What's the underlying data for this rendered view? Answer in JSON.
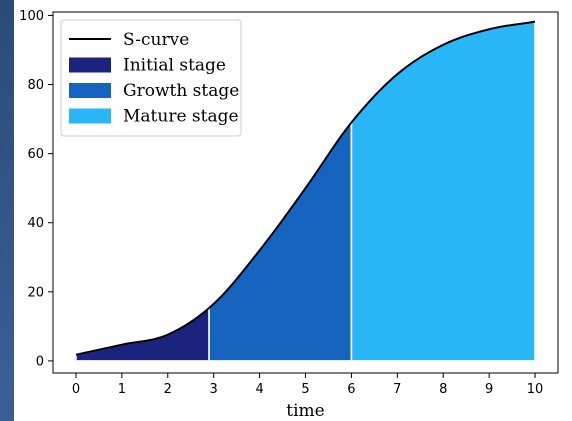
{
  "chart_data": {
    "type": "area",
    "title": "",
    "xlabel": "time",
    "ylabel": "",
    "xlim": [
      -0.5,
      10.5
    ],
    "ylim": [
      -3.5,
      101
    ],
    "xticks": [
      "0",
      "1",
      "2",
      "3",
      "4",
      "5",
      "6",
      "7",
      "8",
      "9",
      "10"
    ],
    "yticks": [
      "0",
      "20",
      "40",
      "60",
      "80",
      "100"
    ],
    "grid": false,
    "legend_position": "upper-left",
    "curve": {
      "name": "S-curve",
      "color": "#000000",
      "x_range": [
        0,
        10
      ]
    },
    "series": [
      {
        "name": "S-curve",
        "kind": "line",
        "color": "#000000"
      },
      {
        "name": "Initial stage",
        "kind": "area",
        "x_start": 0,
        "x_end": 2.9,
        "color": "#1a237e"
      },
      {
        "name": "Growth stage",
        "kind": "area",
        "x_start": 2.9,
        "x_end": 6,
        "color": "#1565c0"
      },
      {
        "name": "Mature stage",
        "kind": "area",
        "x_start": 6,
        "x_end": 10,
        "color": "#29b6f6"
      }
    ],
    "curve_samples": [
      {
        "x": 0,
        "y": 1.8
      },
      {
        "x": 1,
        "y": 4.7
      },
      {
        "x": 2,
        "y": 7.6
      },
      {
        "x": 3,
        "y": 16.5
      },
      {
        "x": 4,
        "y": 32
      },
      {
        "x": 5,
        "y": 50
      },
      {
        "x": 6,
        "y": 69
      },
      {
        "x": 7,
        "y": 83
      },
      {
        "x": 8,
        "y": 91.5
      },
      {
        "x": 9,
        "y": 96
      },
      {
        "x": 10,
        "y": 98.2
      }
    ]
  }
}
